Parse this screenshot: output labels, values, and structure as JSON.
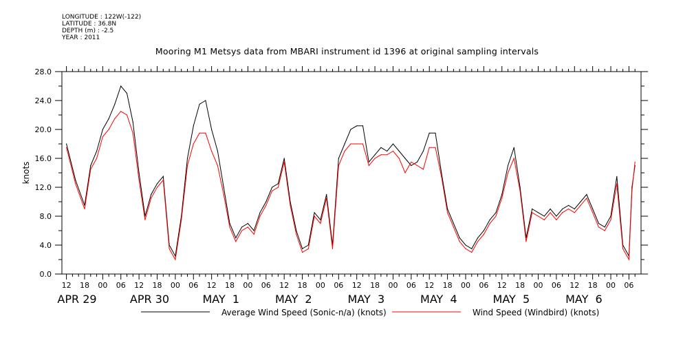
{
  "header": {
    "longitude": "LONGITUDE : 122W(-122)",
    "latitude": "LATITUDE : 36.8N",
    "depth": "DEPTH (m) : -2.5",
    "year": "YEAR : 2011"
  },
  "chart_data": {
    "type": "line",
    "title": "Mooring M1 Metsys data from MBARI instrument id 1396 at original sampling intervals",
    "ylabel": "knots",
    "xlabel": "",
    "ylim": [
      0,
      28
    ],
    "xlim_hours": [
      -1.5,
      190
    ],
    "y_ticks": [
      "0.0",
      "4.0",
      "8.0",
      "12.0",
      "16.0",
      "20.0",
      "24.0",
      "28.0"
    ],
    "hour_ticks": [
      "12",
      "18",
      "00",
      "06",
      "12",
      "18",
      "00",
      "06",
      "12",
      "18",
      "00",
      "06",
      "12",
      "18",
      "00",
      "06",
      "12",
      "18",
      "00",
      "06",
      "12",
      "18",
      "00",
      "06",
      "12",
      "18",
      "00",
      "06",
      "12",
      "18",
      "00",
      "06"
    ],
    "day_labels": [
      "APR 29",
      "APR 30",
      "MAY  1",
      "MAY  2",
      "MAY  3",
      "MAY  4",
      "MAY  5",
      "MAY  6"
    ],
    "grid": false,
    "legend_position": "bottom",
    "colors": {
      "sonic": "#000000",
      "windbird": "#ff0000",
      "axis": "#000000"
    },
    "series": [
      {
        "name": "Average Wind Speed (Sonic-n/a) (knots)",
        "color": "#000000",
        "x": [
          0,
          3,
          6,
          8,
          10,
          12,
          14,
          16,
          18,
          20,
          22,
          24,
          26,
          28,
          30,
          32,
          34,
          36,
          38,
          40,
          42,
          44,
          46,
          48,
          50,
          52,
          54,
          56,
          58,
          60,
          62,
          64,
          66,
          68,
          70,
          72,
          74,
          76,
          78,
          80,
          82,
          84,
          86,
          88,
          90,
          92,
          94,
          96,
          98,
          100,
          102,
          104,
          106,
          108,
          110,
          112,
          114,
          116,
          118,
          120,
          122,
          124,
          126,
          128,
          130,
          132,
          134,
          136,
          138,
          140,
          142,
          144,
          146,
          148,
          150,
          152,
          154,
          156,
          158,
          160,
          162,
          164,
          166,
          168,
          170,
          172,
          174,
          176,
          178,
          180,
          182,
          184,
          186,
          187,
          188
        ],
        "y": [
          18,
          13,
          9.5,
          15,
          17,
          20,
          21.5,
          23.5,
          26,
          25,
          21,
          14,
          8,
          11,
          12.5,
          13.5,
          4,
          2.5,
          8,
          16,
          20.5,
          23.5,
          24,
          20,
          17,
          12,
          7,
          5,
          6.5,
          7,
          6,
          8.5,
          10,
          12,
          12.5,
          16,
          10,
          6,
          3.5,
          4,
          8.5,
          7.5,
          11,
          4,
          16,
          18,
          20,
          20.5,
          20.5,
          15.5,
          16.5,
          17.5,
          17,
          18,
          17,
          16,
          15,
          15.5,
          17,
          19.5,
          19.5,
          14,
          9,
          7,
          5,
          4,
          3.5,
          5,
          6,
          7.5,
          8.5,
          11,
          15,
          17.5,
          12,
          5,
          9,
          8.5,
          8,
          9,
          8,
          9,
          9.5,
          9,
          10,
          11,
          9,
          7,
          6.5,
          8,
          13.5,
          4,
          2.5,
          12,
          15
        ]
      },
      {
        "name": "Wind Speed (Windbird) (knots)",
        "color": "#ff0000",
        "x": [
          0,
          3,
          6,
          8,
          10,
          12,
          14,
          16,
          18,
          20,
          22,
          24,
          26,
          28,
          30,
          32,
          34,
          36,
          38,
          40,
          42,
          44,
          46,
          48,
          50,
          52,
          54,
          56,
          58,
          60,
          62,
          64,
          66,
          68,
          70,
          72,
          74,
          76,
          78,
          80,
          82,
          84,
          86,
          88,
          90,
          92,
          94,
          96,
          98,
          100,
          102,
          104,
          106,
          108,
          110,
          112,
          114,
          116,
          118,
          120,
          122,
          124,
          126,
          128,
          130,
          132,
          134,
          136,
          138,
          140,
          142,
          144,
          146,
          148,
          150,
          152,
          154,
          156,
          158,
          160,
          162,
          164,
          166,
          168,
          170,
          172,
          174,
          176,
          178,
          180,
          182,
          184,
          186,
          187,
          188
        ],
        "y": [
          17.5,
          12.5,
          9,
          14.5,
          16,
          19,
          20,
          21.5,
          22.5,
          22,
          19.5,
          13,
          7.5,
          10.5,
          12,
          13,
          3.5,
          2,
          7.5,
          15,
          18,
          19.5,
          19.5,
          17,
          15,
          11,
          6.5,
          4.5,
          6,
          6.5,
          5.5,
          8,
          9.5,
          11.5,
          12,
          15.5,
          9.5,
          5.5,
          3,
          3.5,
          8,
          7,
          10.5,
          3.5,
          15,
          17,
          18,
          18,
          18,
          15,
          16,
          16.5,
          16.5,
          17,
          16,
          14,
          15.5,
          15,
          14.5,
          17.5,
          17.5,
          13.5,
          8.5,
          6.5,
          4.5,
          3.5,
          3,
          4.5,
          5.5,
          7,
          8,
          10.5,
          14,
          16,
          11.5,
          4.5,
          8.5,
          8,
          7.5,
          8.5,
          7.5,
          8.5,
          9,
          8.5,
          9.5,
          10.5,
          8.5,
          6.5,
          6,
          7.5,
          12.5,
          3.5,
          2,
          11.5,
          15.5
        ]
      }
    ]
  }
}
